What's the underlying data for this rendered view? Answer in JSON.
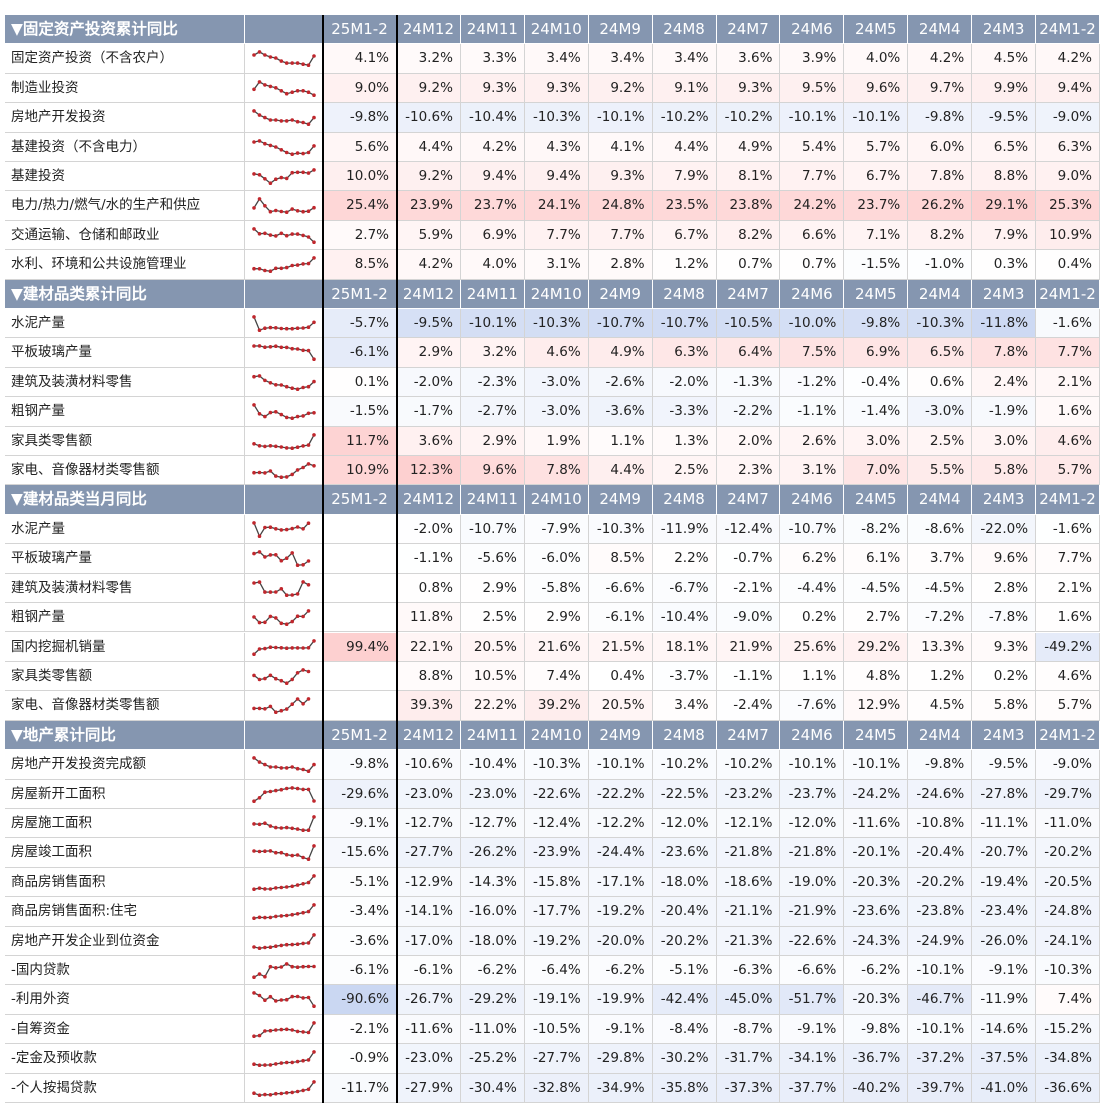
{
  "sections": [
    {
      "title": "▼固定资产投资累计同比",
      "columns": [
        "25M1-2",
        "24M12",
        "24M11",
        "24M10",
        "24M9",
        "24M8",
        "24M7",
        "24M6",
        "24M5",
        "24M4",
        "24M3",
        "24M1-2"
      ],
      "rows": [
        {
          "name": "固定资产投资（不含农户）",
          "values": [
            "4.1%",
            "3.2%",
            "3.3%",
            "3.4%",
            "3.4%",
            "3.4%",
            "3.6%",
            "3.9%",
            "4.0%",
            "4.2%",
            "4.5%",
            "4.2%"
          ]
        },
        {
          "name": "制造业投资",
          "values": [
            "9.0%",
            "9.2%",
            "9.3%",
            "9.3%",
            "9.2%",
            "9.1%",
            "9.3%",
            "9.5%",
            "9.6%",
            "9.7%",
            "9.9%",
            "9.4%"
          ]
        },
        {
          "name": "房地产开发投资",
          "values": [
            "-9.8%",
            "-10.6%",
            "-10.4%",
            "-10.3%",
            "-10.1%",
            "-10.2%",
            "-10.2%",
            "-10.1%",
            "-10.1%",
            "-9.8%",
            "-9.5%",
            "-9.0%"
          ]
        },
        {
          "name": "基建投资（不含电力）",
          "values": [
            "5.6%",
            "4.4%",
            "4.2%",
            "4.3%",
            "4.1%",
            "4.4%",
            "4.9%",
            "5.4%",
            "5.7%",
            "6.0%",
            "6.5%",
            "6.3%"
          ]
        },
        {
          "name": "基建投资",
          "values": [
            "10.0%",
            "9.2%",
            "9.4%",
            "9.4%",
            "9.3%",
            "7.9%",
            "8.1%",
            "7.7%",
            "6.7%",
            "7.8%",
            "8.8%",
            "9.0%"
          ]
        },
        {
          "name": "电力/热力/燃气/水的生产和供应",
          "values": [
            "25.4%",
            "23.9%",
            "23.7%",
            "24.1%",
            "24.8%",
            "23.5%",
            "23.8%",
            "24.2%",
            "23.7%",
            "26.2%",
            "29.1%",
            "25.3%"
          ]
        },
        {
          "name": "交通运输、仓储和邮政业",
          "values": [
            "2.7%",
            "5.9%",
            "6.9%",
            "7.7%",
            "7.7%",
            "6.7%",
            "8.2%",
            "6.6%",
            "7.1%",
            "8.2%",
            "7.9%",
            "10.9%"
          ]
        },
        {
          "name": "水利、环境和公共设施管理业",
          "values": [
            "8.5%",
            "4.2%",
            "4.0%",
            "3.1%",
            "2.8%",
            "1.2%",
            "0.7%",
            "0.7%",
            "-1.5%",
            "-1.0%",
            "0.3%",
            "0.4%"
          ]
        }
      ]
    },
    {
      "title": "▼建材品类累计同比",
      "columns": [
        "25M1-2",
        "24M12",
        "24M11",
        "24M10",
        "24M9",
        "24M8",
        "24M7",
        "24M6",
        "24M5",
        "24M4",
        "24M3",
        "24M1-2"
      ],
      "rows": [
        {
          "name": "水泥产量",
          "values": [
            "-5.7%",
            "-9.5%",
            "-10.1%",
            "-10.3%",
            "-10.7%",
            "-10.7%",
            "-10.5%",
            "-10.0%",
            "-9.8%",
            "-10.3%",
            "-11.8%",
            "-1.6%"
          ]
        },
        {
          "name": "平板玻璃产量",
          "values": [
            "-6.1%",
            "2.9%",
            "3.2%",
            "4.6%",
            "4.9%",
            "6.3%",
            "6.4%",
            "7.5%",
            "6.9%",
            "6.5%",
            "7.8%",
            "7.7%"
          ]
        },
        {
          "name": "建筑及装潢材料零售",
          "values": [
            "0.1%",
            "-2.0%",
            "-2.3%",
            "-3.0%",
            "-2.6%",
            "-2.0%",
            "-1.3%",
            "-1.2%",
            "-0.4%",
            "0.6%",
            "2.4%",
            "2.1%"
          ]
        },
        {
          "name": "粗钢产量",
          "values": [
            "-1.5%",
            "-1.7%",
            "-2.7%",
            "-3.0%",
            "-3.6%",
            "-3.3%",
            "-2.2%",
            "-1.1%",
            "-1.4%",
            "-3.0%",
            "-1.9%",
            "1.6%"
          ]
        },
        {
          "name": "家具类零售额",
          "values": [
            "11.7%",
            "3.6%",
            "2.9%",
            "1.9%",
            "1.1%",
            "1.3%",
            "2.0%",
            "2.6%",
            "3.0%",
            "2.5%",
            "3.0%",
            "4.6%"
          ]
        },
        {
          "name": "家电、音像器材类零售额",
          "values": [
            "10.9%",
            "12.3%",
            "9.6%",
            "7.8%",
            "4.4%",
            "2.5%",
            "2.3%",
            "3.1%",
            "7.0%",
            "5.5%",
            "5.8%",
            "5.7%"
          ]
        }
      ]
    },
    {
      "title": "▼建材品类当月同比",
      "columns": [
        "25M1-2",
        "24M12",
        "24M11",
        "24M10",
        "24M9",
        "24M8",
        "24M7",
        "24M6",
        "24M5",
        "24M4",
        "24M3",
        "24M1-2"
      ],
      "rows": [
        {
          "name": "水泥产量",
          "values": [
            null,
            "-2.0%",
            "-10.7%",
            "-7.9%",
            "-10.3%",
            "-11.9%",
            "-12.4%",
            "-10.7%",
            "-8.2%",
            "-8.6%",
            "-22.0%",
            "-1.6%"
          ]
        },
        {
          "name": "平板玻璃产量",
          "values": [
            null,
            "-1.1%",
            "-5.6%",
            "-6.0%",
            "8.5%",
            "2.2%",
            "-0.7%",
            "6.2%",
            "6.1%",
            "3.7%",
            "9.6%",
            "7.7%"
          ]
        },
        {
          "name": "建筑及装潢材料零售",
          "values": [
            null,
            "0.8%",
            "2.9%",
            "-5.8%",
            "-6.6%",
            "-6.7%",
            "-2.1%",
            "-4.4%",
            "-4.5%",
            "-4.5%",
            "2.8%",
            "2.1%"
          ]
        },
        {
          "name": "粗钢产量",
          "values": [
            null,
            "11.8%",
            "2.5%",
            "2.9%",
            "-6.1%",
            "-10.4%",
            "-9.0%",
            "0.2%",
            "2.7%",
            "-7.2%",
            "-7.8%",
            "1.6%"
          ]
        },
        {
          "name": "国内挖掘机销量",
          "values": [
            "99.4%",
            "22.1%",
            "20.5%",
            "21.6%",
            "21.5%",
            "18.1%",
            "21.9%",
            "25.6%",
            "29.2%",
            "13.3%",
            "9.3%",
            "-49.2%"
          ]
        },
        {
          "name": "家具类零售额",
          "values": [
            null,
            "8.8%",
            "10.5%",
            "7.4%",
            "0.4%",
            "-3.7%",
            "-1.1%",
            "1.1%",
            "4.8%",
            "1.2%",
            "0.2%",
            "4.6%"
          ]
        },
        {
          "name": "家电、音像器材类零售额",
          "values": [
            null,
            "39.3%",
            "22.2%",
            "39.2%",
            "20.5%",
            "3.4%",
            "-2.4%",
            "-7.6%",
            "12.9%",
            "4.5%",
            "5.8%",
            "5.7%"
          ]
        }
      ]
    },
    {
      "title": "▼地产累计同比",
      "columns": [
        "25M1-2",
        "24M12",
        "24M11",
        "24M10",
        "24M9",
        "24M8",
        "24M7",
        "24M6",
        "24M5",
        "24M4",
        "24M3",
        "24M1-2"
      ],
      "rows": [
        {
          "name": "房地产开发投资完成额",
          "values": [
            "-9.8%",
            "-10.6%",
            "-10.4%",
            "-10.3%",
            "-10.1%",
            "-10.2%",
            "-10.2%",
            "-10.1%",
            "-10.1%",
            "-9.8%",
            "-9.5%",
            "-9.0%"
          ]
        },
        {
          "name": "房屋新开工面积",
          "values": [
            "-29.6%",
            "-23.0%",
            "-23.0%",
            "-22.6%",
            "-22.2%",
            "-22.5%",
            "-23.2%",
            "-23.7%",
            "-24.2%",
            "-24.6%",
            "-27.8%",
            "-29.7%"
          ]
        },
        {
          "name": "房屋施工面积",
          "values": [
            "-9.1%",
            "-12.7%",
            "-12.7%",
            "-12.4%",
            "-12.2%",
            "-12.0%",
            "-12.1%",
            "-12.0%",
            "-11.6%",
            "-10.8%",
            "-11.1%",
            "-11.0%"
          ]
        },
        {
          "name": "房屋竣工面积",
          "values": [
            "-15.6%",
            "-27.7%",
            "-26.2%",
            "-23.9%",
            "-24.4%",
            "-23.6%",
            "-21.8%",
            "-21.8%",
            "-20.1%",
            "-20.4%",
            "-20.7%",
            "-20.2%"
          ]
        },
        {
          "name": "商品房销售面积",
          "values": [
            "-5.1%",
            "-12.9%",
            "-14.3%",
            "-15.8%",
            "-17.1%",
            "-18.0%",
            "-18.6%",
            "-19.0%",
            "-20.3%",
            "-20.2%",
            "-19.4%",
            "-20.5%"
          ]
        },
        {
          "name": "商品房销售面积:住宅",
          "values": [
            "-3.4%",
            "-14.1%",
            "-16.0%",
            "-17.7%",
            "-19.2%",
            "-20.4%",
            "-21.1%",
            "-21.9%",
            "-23.6%",
            "-23.8%",
            "-23.4%",
            "-24.8%"
          ]
        },
        {
          "name": "房地产开发企业到位资金",
          "values": [
            "-3.6%",
            "-17.0%",
            "-18.0%",
            "-19.2%",
            "-20.0%",
            "-20.2%",
            "-21.3%",
            "-22.6%",
            "-24.3%",
            "-24.9%",
            "-26.0%",
            "-24.1%"
          ]
        },
        {
          "name": "-国内贷款",
          "values": [
            "-6.1%",
            "-6.1%",
            "-6.2%",
            "-6.4%",
            "-6.2%",
            "-5.1%",
            "-6.3%",
            "-6.6%",
            "-6.2%",
            "-10.1%",
            "-9.1%",
            "-10.3%"
          ]
        },
        {
          "name": "-利用外资",
          "values": [
            "-90.6%",
            "-26.7%",
            "-29.2%",
            "-19.1%",
            "-19.9%",
            "-42.4%",
            "-45.0%",
            "-51.7%",
            "-20.3%",
            "-46.7%",
            "-11.9%",
            "7.4%"
          ]
        },
        {
          "name": "-自筹资金",
          "values": [
            "-2.1%",
            "-11.6%",
            "-11.0%",
            "-10.5%",
            "-9.1%",
            "-8.4%",
            "-8.7%",
            "-9.1%",
            "-9.8%",
            "-10.1%",
            "-14.6%",
            "-15.2%"
          ]
        },
        {
          "name": "-定金及预收款",
          "values": [
            "-0.9%",
            "-23.0%",
            "-25.2%",
            "-27.7%",
            "-29.8%",
            "-30.2%",
            "-31.7%",
            "-34.1%",
            "-36.7%",
            "-37.2%",
            "-37.5%",
            "-34.8%"
          ]
        },
        {
          "name": "-个人按揭贷款",
          "values": [
            "-11.7%",
            "-27.9%",
            "-30.4%",
            "-32.8%",
            "-34.9%",
            "-35.8%",
            "-37.3%",
            "-37.7%",
            "-40.2%",
            "-39.7%",
            "-41.0%",
            "-36.6%"
          ]
        }
      ]
    }
  ]
}
